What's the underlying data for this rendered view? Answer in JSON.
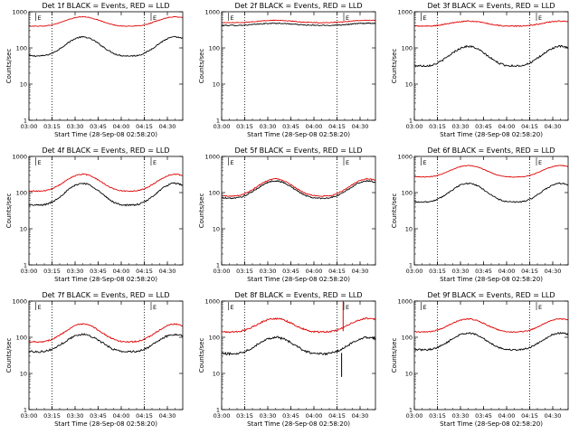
{
  "colors": {
    "events": "#000000",
    "lld": "#e00000",
    "axis": "#000000",
    "background": "#ffffff"
  },
  "common": {
    "ylabel": "Counts/sec",
    "xlabel": "Start Time (28-Sep-08 02:58:20)",
    "x_ticks": [
      "03:00",
      "03:15",
      "03:30",
      "03:45",
      "04:00",
      "04:15",
      "04:30"
    ],
    "y_ticks": [
      "1",
      "10",
      "100",
      "1000"
    ],
    "flag_label": "E",
    "dotted_at": [
      "03:15",
      "04:15"
    ]
  },
  "chart_data": [
    {
      "type": "line",
      "title": "Det 1f BLACK = Events, RED = LLD",
      "xlabel": "Start Time (28-Sep-08 02:58:20)",
      "ylabel": "Counts/sec",
      "x_range_minutes": [
        0,
        100
      ],
      "ylim": [
        1,
        1000
      ],
      "yscale": "log",
      "series": [
        {
          "name": "Events",
          "color": "#000000",
          "base": 60,
          "peak": 200,
          "noise": 0.04
        },
        {
          "name": "LLD",
          "color": "#e00000",
          "base": 400,
          "peak": 720,
          "noise": 0.02
        }
      ]
    },
    {
      "type": "line",
      "title": "Det 2f BLACK = Events, RED = LLD",
      "xlabel": "Start Time (28-Sep-08 02:58:20)",
      "ylabel": "Counts/sec",
      "x_range_minutes": [
        0,
        100
      ],
      "ylim": [
        1,
        1000
      ],
      "yscale": "log",
      "series": [
        {
          "name": "Events",
          "color": "#000000",
          "base": 420,
          "peak": 480,
          "noise": 0.03
        },
        {
          "name": "LLD",
          "color": "#e00000",
          "base": 500,
          "peak": 580,
          "noise": 0.02
        }
      ]
    },
    {
      "type": "line",
      "title": "Det 3f BLACK = Events, RED = LLD",
      "xlabel": "Start Time (28-Sep-08 02:58:20)",
      "ylabel": "Counts/sec",
      "x_range_minutes": [
        0,
        100
      ],
      "ylim": [
        1,
        1000
      ],
      "yscale": "log",
      "series": [
        {
          "name": "Events",
          "color": "#000000",
          "base": 32,
          "peak": 110,
          "noise": 0.06
        },
        {
          "name": "LLD",
          "color": "#e00000",
          "base": 400,
          "peak": 550,
          "noise": 0.03
        }
      ]
    },
    {
      "type": "line",
      "title": "Det 4f BLACK = Events, RED = LLD",
      "xlabel": "Start Time (28-Sep-08 02:58:20)",
      "ylabel": "Counts/sec",
      "x_range_minutes": [
        0,
        100
      ],
      "ylim": [
        1,
        1000
      ],
      "yscale": "log",
      "series": [
        {
          "name": "Events",
          "color": "#000000",
          "base": 45,
          "peak": 180,
          "noise": 0.05
        },
        {
          "name": "LLD",
          "color": "#e00000",
          "base": 110,
          "peak": 320,
          "noise": 0.03
        }
      ]
    },
    {
      "type": "line",
      "title": "Det 5f BLACK = Events, RED = LLD",
      "xlabel": "Start Time (28-Sep-08 02:58:20)",
      "ylabel": "Counts/sec",
      "x_range_minutes": [
        0,
        100
      ],
      "ylim": [
        1,
        1000
      ],
      "yscale": "log",
      "series": [
        {
          "name": "Events",
          "color": "#000000",
          "base": 70,
          "peak": 210,
          "noise": 0.04
        },
        {
          "name": "LLD",
          "color": "#e00000",
          "base": 80,
          "peak": 240,
          "noise": 0.03
        }
      ]
    },
    {
      "type": "line",
      "title": "Det 6f BLACK = Events, RED = LLD",
      "xlabel": "Start Time (28-Sep-08 02:58:20)",
      "ylabel": "Counts/sec",
      "x_range_minutes": [
        0,
        100
      ],
      "ylim": [
        1,
        1000
      ],
      "yscale": "log",
      "series": [
        {
          "name": "Events",
          "color": "#000000",
          "base": 55,
          "peak": 180,
          "noise": 0.04
        },
        {
          "name": "LLD",
          "color": "#e00000",
          "base": 270,
          "peak": 560,
          "noise": 0.02
        }
      ]
    },
    {
      "type": "line",
      "title": "Det 7f BLACK = Events, RED = LLD",
      "xlabel": "Start Time (28-Sep-08 02:58:20)",
      "ylabel": "Counts/sec",
      "x_range_minutes": [
        0,
        100
      ],
      "ylim": [
        1,
        1000
      ],
      "yscale": "log",
      "series": [
        {
          "name": "Events",
          "color": "#000000",
          "base": 40,
          "peak": 120,
          "noise": 0.06
        },
        {
          "name": "LLD",
          "color": "#e00000",
          "base": 75,
          "peak": 230,
          "noise": 0.04
        }
      ]
    },
    {
      "type": "line",
      "title": "Det 8f BLACK = Events, RED = LLD",
      "xlabel": "Start Time (28-Sep-08 02:58:20)",
      "ylabel": "Counts/sec",
      "x_range_minutes": [
        0,
        100
      ],
      "ylim": [
        1,
        1000
      ],
      "yscale": "log",
      "series": [
        {
          "name": "Events",
          "color": "#000000",
          "base": 35,
          "peak": 100,
          "noise": 0.07,
          "spike": {
            "minute": 78,
            "value": 8
          }
        },
        {
          "name": "LLD",
          "color": "#e00000",
          "base": 140,
          "peak": 330,
          "noise": 0.05,
          "spike": {
            "minute": 79,
            "value": 1000
          }
        }
      ]
    },
    {
      "type": "line",
      "title": "Det 9f BLACK = Events, RED = LLD",
      "xlabel": "Start Time (28-Sep-08 02:58:20)",
      "ylabel": "Counts/sec",
      "x_range_minutes": [
        0,
        100
      ],
      "ylim": [
        1,
        1000
      ],
      "yscale": "log",
      "series": [
        {
          "name": "Events",
          "color": "#000000",
          "base": 45,
          "peak": 130,
          "noise": 0.05
        },
        {
          "name": "LLD",
          "color": "#e00000",
          "base": 140,
          "peak": 320,
          "noise": 0.03
        }
      ]
    }
  ]
}
